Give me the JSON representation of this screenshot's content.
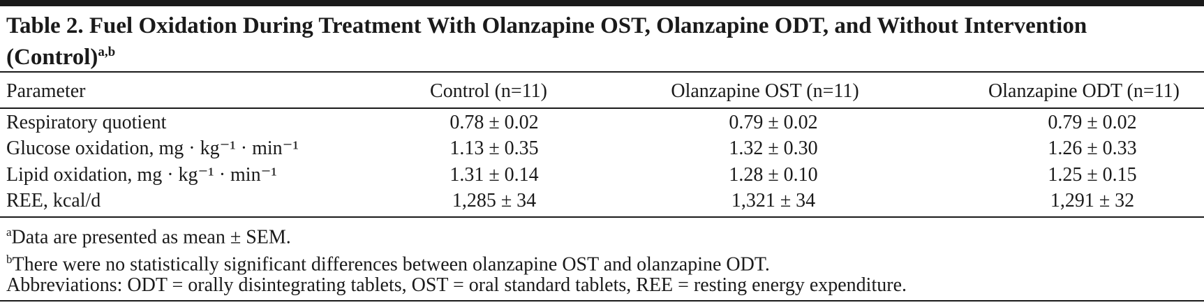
{
  "title": {
    "text": "Table 2. Fuel Oxidation During Treatment With Olanzapine OST, Olanzapine ODT, and Without Intervention (Control)",
    "superscript": "a,b"
  },
  "table": {
    "columns": [
      "Parameter",
      "Control (n=11)",
      "Olanzapine OST (n=11)",
      "Olanzapine ODT (n=11)"
    ],
    "rows": [
      [
        "Respiratory quotient",
        "0.78 ± 0.02",
        "0.79 ± 0.02",
        "0.79 ± 0.02"
      ],
      [
        "Glucose oxidation, mg · kg⁻¹ · min⁻¹",
        "1.13 ± 0.35",
        "1.32 ± 0.30",
        "1.26 ± 0.33"
      ],
      [
        "Lipid oxidation, mg · kg⁻¹ · min⁻¹",
        "1.31 ± 0.14",
        "1.28 ± 0.10",
        "1.25 ± 0.15"
      ],
      [
        "REE, kcal/d",
        "1,285 ± 34",
        "1,321 ± 34",
        "1,291 ± 32"
      ]
    ]
  },
  "footnotes": [
    {
      "mark": "a",
      "text": "Data are presented as mean ± SEM."
    },
    {
      "mark": "b",
      "text": "There were no statistically significant differences between olanzapine OST and olanzapine ODT."
    }
  ],
  "abbreviations": "Abbreviations: ODT = orally disintegrating tablets, OST = oral standard tablets, REE = resting energy expenditure."
}
